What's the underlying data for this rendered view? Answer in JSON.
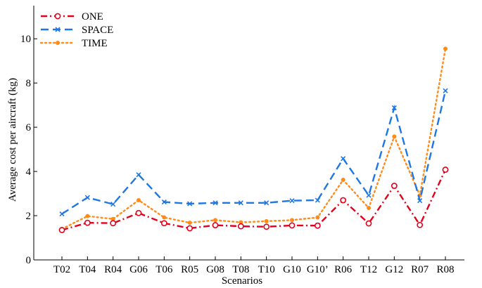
{
  "chart_data": {
    "type": "line",
    "categories": [
      "T02",
      "T04",
      "R04",
      "G06",
      "T06",
      "R05",
      "G08",
      "T08",
      "T10",
      "G10",
      "G10’",
      "R06",
      "T12",
      "G12",
      "R07",
      "R08"
    ],
    "series": [
      {
        "name": "ONE",
        "color": "#e3001b",
        "line_style": "dash-dot",
        "marker": "open-circle",
        "values": [
          1.35,
          1.68,
          1.66,
          2.12,
          1.66,
          1.43,
          1.57,
          1.52,
          1.5,
          1.56,
          1.55,
          2.7,
          1.65,
          3.35,
          1.58,
          4.08
        ]
      },
      {
        "name": "SPACE",
        "color": "#1f77e4",
        "line_style": "dashed",
        "marker": "x",
        "values": [
          2.08,
          2.82,
          2.52,
          3.85,
          2.62,
          2.54,
          2.58,
          2.58,
          2.58,
          2.68,
          2.7,
          4.58,
          2.92,
          6.88,
          2.68,
          7.65
        ]
      },
      {
        "name": "TIME",
        "color": "#ff8c1a",
        "line_style": "dotted",
        "marker": "filled-dot",
        "values": [
          1.4,
          1.98,
          1.85,
          2.7,
          1.92,
          1.68,
          1.8,
          1.7,
          1.75,
          1.8,
          1.92,
          3.62,
          2.35,
          5.58,
          2.92,
          9.55
        ]
      }
    ],
    "xlabel": "Scenarios",
    "ylabel": "Average cost per aircraft (kg)",
    "ylim": [
      0,
      11.5
    ],
    "yticks": [
      0,
      2,
      4,
      6,
      8,
      10
    ],
    "grid": false,
    "legend_position": "top-left"
  }
}
